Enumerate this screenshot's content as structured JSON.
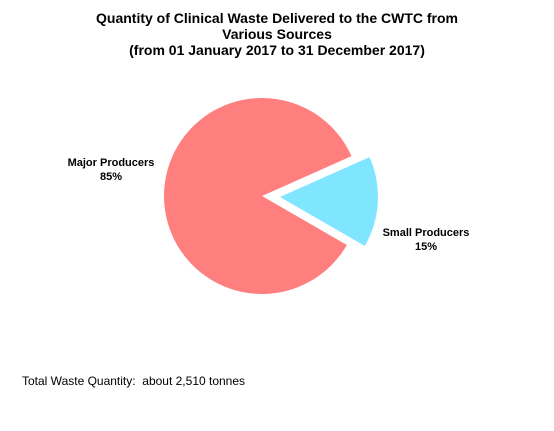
{
  "chart_data": {
    "type": "pie",
    "title": [
      "Quantity of Clinical Waste Delivered to the CWTC from",
      "Various Sources",
      "(from 01 January 2017 to 31 December 2017)"
    ],
    "slices": [
      {
        "name": "Major Producers",
        "value": 85,
        "label": "85%",
        "color": "#ff7f7f",
        "exploded": false
      },
      {
        "name": "Small Producers",
        "value": 15,
        "label": "15%",
        "color": "#80e5ff",
        "exploded": true
      }
    ]
  },
  "footnote": "Total Waste Quantity:  about 2,510 tonnes"
}
